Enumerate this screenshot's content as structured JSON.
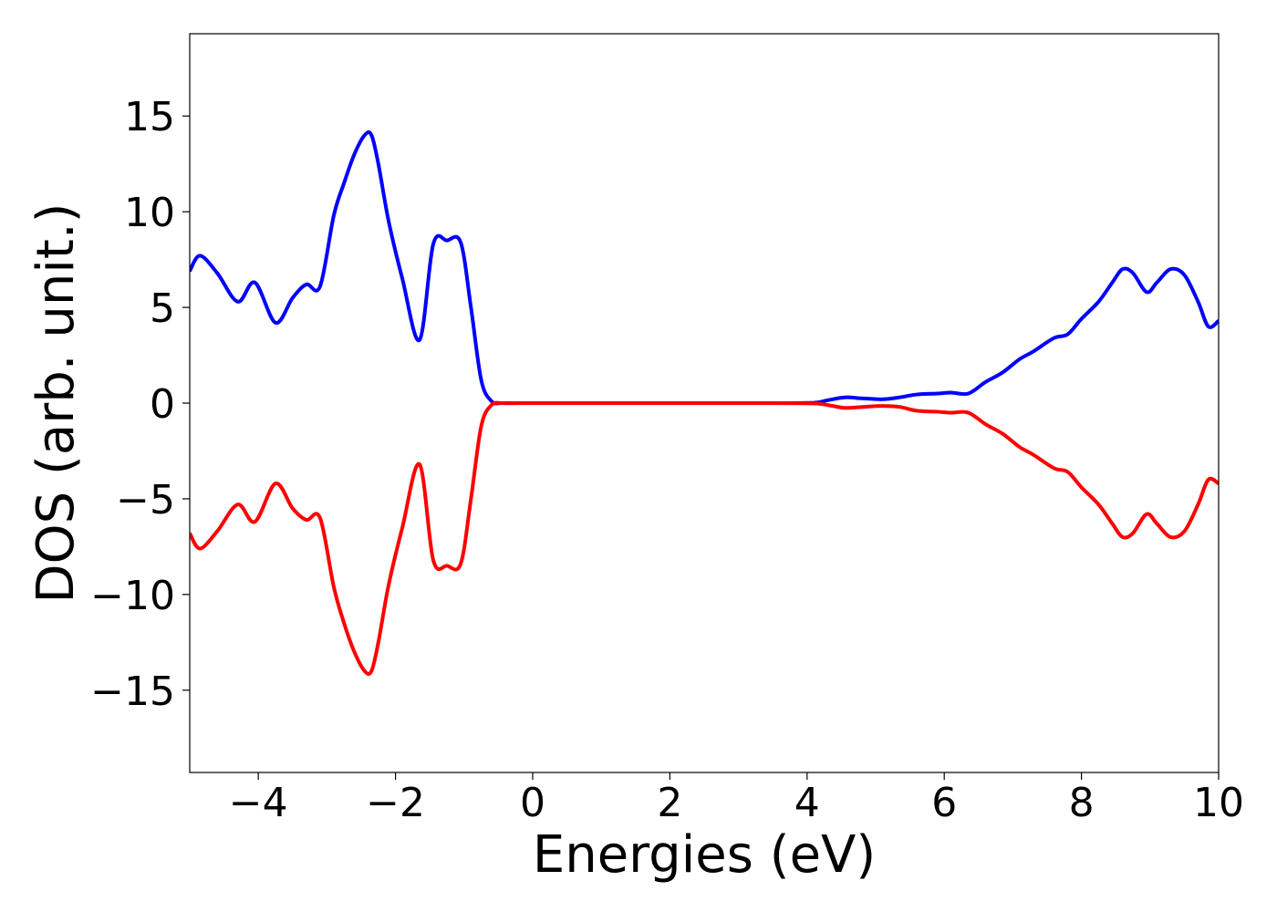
{
  "chart_data": {
    "type": "line",
    "title": "",
    "xlabel": "Energies (eV)",
    "ylabel": "DOS (arb. unit.)",
    "xlim": [
      -5,
      10
    ],
    "ylim": [
      -19.3,
      19.3
    ],
    "grid": false,
    "legend": "none",
    "xticks": [
      -4,
      -2,
      0,
      2,
      4,
      6,
      8,
      10
    ],
    "xtick_labels": [
      "−4",
      "−2",
      "0",
      "2",
      "4",
      "6",
      "8",
      "10"
    ],
    "yticks": [
      -15,
      -10,
      -5,
      0,
      5,
      10,
      15
    ],
    "ytick_labels": [
      "−15",
      "−10",
      "−5",
      "0",
      "5",
      "10",
      "15"
    ],
    "series": [
      {
        "color": "#0000ff",
        "x": [
          -5.0,
          -4.85,
          -4.6,
          -4.3,
          -4.05,
          -3.75,
          -3.5,
          -3.3,
          -3.1,
          -2.9,
          -2.75,
          -2.6,
          -2.45,
          -2.35,
          -2.25,
          -2.1,
          -1.9,
          -1.65,
          -1.45,
          -1.25,
          -1.05,
          -0.9,
          -0.75,
          -0.6,
          -0.45,
          -0.2,
          0.5,
          2.0,
          3.5,
          4.1,
          4.3,
          4.55,
          4.8,
          5.1,
          5.35,
          5.6,
          5.9,
          6.1,
          6.35,
          6.6,
          6.85,
          7.1,
          7.3,
          7.6,
          7.8,
          8.0,
          8.25,
          8.45,
          8.6,
          8.75,
          8.95,
          9.1,
          9.3,
          9.5,
          9.7,
          9.85,
          10.0
        ],
        "values": [
          6.9,
          7.7,
          6.8,
          5.3,
          6.3,
          4.2,
          5.5,
          6.2,
          6.1,
          9.8,
          11.5,
          13.0,
          14.0,
          14.0,
          12.5,
          9.5,
          6.5,
          3.3,
          8.3,
          8.5,
          8.4,
          5.0,
          1.2,
          0.1,
          0.0,
          0.0,
          0.0,
          0.0,
          0.0,
          0.02,
          0.15,
          0.3,
          0.25,
          0.2,
          0.3,
          0.45,
          0.5,
          0.55,
          0.5,
          1.1,
          1.6,
          2.3,
          2.7,
          3.4,
          3.6,
          4.4,
          5.3,
          6.3,
          7.0,
          6.8,
          5.8,
          6.3,
          7.0,
          6.7,
          5.3,
          4.0,
          4.3
        ]
      },
      {
        "color": "#ff0000",
        "x": [
          -5.0,
          -4.85,
          -4.6,
          -4.3,
          -4.05,
          -3.75,
          -3.5,
          -3.3,
          -3.1,
          -2.9,
          -2.75,
          -2.6,
          -2.45,
          -2.35,
          -2.25,
          -2.1,
          -1.9,
          -1.65,
          -1.45,
          -1.25,
          -1.05,
          -0.9,
          -0.75,
          -0.6,
          -0.45,
          -0.2,
          0.5,
          2.0,
          3.5,
          4.1,
          4.3,
          4.55,
          4.8,
          5.1,
          5.35,
          5.6,
          5.9,
          6.1,
          6.35,
          6.6,
          6.85,
          7.1,
          7.3,
          7.6,
          7.8,
          8.0,
          8.25,
          8.45,
          8.6,
          8.75,
          8.95,
          9.1,
          9.3,
          9.5,
          9.7,
          9.85,
          10.0
        ],
        "values": [
          -6.8,
          -7.6,
          -6.7,
          -5.3,
          -6.2,
          -4.2,
          -5.5,
          -6.1,
          -6.0,
          -9.6,
          -11.5,
          -13.0,
          -14.0,
          -14.0,
          -12.5,
          -9.5,
          -6.5,
          -3.2,
          -8.2,
          -8.5,
          -8.4,
          -5.0,
          -1.2,
          -0.1,
          0.0,
          0.0,
          0.0,
          0.0,
          0.0,
          -0.02,
          -0.1,
          -0.25,
          -0.2,
          -0.15,
          -0.2,
          -0.4,
          -0.45,
          -0.5,
          -0.5,
          -1.1,
          -1.6,
          -2.3,
          -2.7,
          -3.4,
          -3.6,
          -4.4,
          -5.3,
          -6.3,
          -7.0,
          -6.8,
          -5.8,
          -6.3,
          -7.0,
          -6.7,
          -5.3,
          -4.0,
          -4.2
        ]
      }
    ]
  }
}
